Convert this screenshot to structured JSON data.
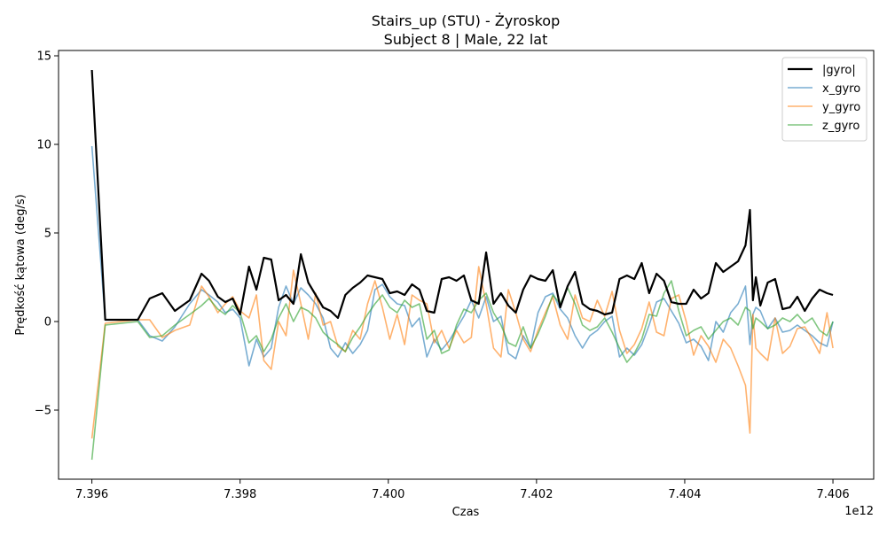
{
  "chart_data": {
    "type": "line",
    "title": "Stairs_up (STU) - Żyroskop",
    "subtitle": "Subject 8 | Male, 22 lat",
    "xlabel": "Czas",
    "ylabel": "Prędkość kątowa (deg/s)",
    "x_offset_label": "1e12",
    "xlim": [
      7.39555,
      7.40655
    ],
    "ylim": [
      -8.9,
      15.3
    ],
    "x_ticks": [
      7.396,
      7.398,
      7.4,
      7.402,
      7.404,
      7.406
    ],
    "x_tick_labels": [
      "7.396",
      "7.398",
      "7.400",
      "7.402",
      "7.404",
      "7.406"
    ],
    "y_ticks": [
      -5,
      0,
      5,
      10,
      15
    ],
    "y_tick_labels": [
      "−5",
      "0",
      "5",
      "10",
      "15"
    ],
    "grid": false,
    "legend_position": "top-right",
    "series": [
      {
        "name": "|gyro|",
        "color": "#000000",
        "x": [
          7.396,
          7.39618,
          7.39662,
          7.39678,
          7.39695,
          7.39712,
          7.39732,
          7.39748,
          7.39758,
          7.3977,
          7.3978,
          7.3979,
          7.398,
          7.39812,
          7.39822,
          7.39832,
          7.39842,
          7.39852,
          7.39862,
          7.39872,
          7.39882,
          7.39892,
          7.39902,
          7.39912,
          7.39922,
          7.39932,
          7.39942,
          7.39952,
          7.39962,
          7.39972,
          7.39982,
          7.39992,
          7.40002,
          7.40012,
          7.40022,
          7.40032,
          7.40042,
          7.40052,
          7.40062,
          7.40072,
          7.40082,
          7.40092,
          7.40102,
          7.40112,
          7.40122,
          7.40132,
          7.40142,
          7.40152,
          7.40162,
          7.40172,
          7.40182,
          7.40192,
          7.40202,
          7.40212,
          7.40222,
          7.40232,
          7.40242,
          7.40252,
          7.40262,
          7.40272,
          7.40282,
          7.40292,
          7.40302,
          7.40312,
          7.40322,
          7.40332,
          7.40342,
          7.40352,
          7.40362,
          7.40372,
          7.40382,
          7.40392,
          7.40402,
          7.40412,
          7.40422,
          7.40432,
          7.40442,
          7.40452,
          7.40462,
          7.40472,
          7.40482,
          7.40488,
          7.40492,
          7.40496,
          7.40502,
          7.40512,
          7.40522,
          7.40532,
          7.40542,
          7.40552,
          7.40562,
          7.40572,
          7.40582,
          7.40592,
          7.406
        ],
        "y": [
          14.2,
          0.1,
          0.1,
          1.3,
          1.6,
          0.6,
          1.2,
          2.7,
          2.3,
          1.4,
          1.1,
          1.3,
          0.4,
          3.1,
          1.8,
          3.6,
          3.5,
          1.2,
          1.5,
          1.0,
          3.8,
          2.2,
          1.5,
          0.8,
          0.6,
          0.2,
          1.5,
          1.9,
          2.2,
          2.6,
          2.5,
          2.4,
          1.6,
          1.7,
          1.5,
          2.1,
          1.8,
          0.6,
          0.5,
          2.4,
          2.5,
          2.3,
          2.6,
          1.2,
          1.0,
          3.9,
          1.0,
          1.6,
          0.9,
          0.5,
          1.8,
          2.6,
          2.4,
          2.3,
          2.9,
          0.8,
          2.0,
          2.8,
          1.0,
          0.7,
          0.6,
          0.4,
          0.5,
          2.4,
          2.6,
          2.4,
          3.3,
          1.6,
          2.7,
          2.3,
          1.1,
          1.0,
          1.0,
          1.8,
          1.3,
          1.6,
          3.3,
          2.8,
          3.1,
          3.4,
          4.3,
          6.3,
          1.2,
          2.5,
          0.9,
          2.2,
          2.4,
          0.7,
          0.8,
          1.4,
          0.6,
          1.3,
          1.8,
          1.6,
          1.5
        ],
        "line_width": 2.2,
        "opacity": 1.0
      },
      {
        "name": "x_gyro",
        "color": "#1f77b4",
        "x": [
          7.396,
          7.39618,
          7.39662,
          7.39678,
          7.39695,
          7.39712,
          7.39732,
          7.39748,
          7.39758,
          7.3977,
          7.3978,
          7.3979,
          7.398,
          7.39812,
          7.39822,
          7.39832,
          7.39842,
          7.39852,
          7.39862,
          7.39872,
          7.39882,
          7.39892,
          7.39902,
          7.39912,
          7.39922,
          7.39932,
          7.39942,
          7.39952,
          7.39962,
          7.39972,
          7.39982,
          7.39992,
          7.40002,
          7.40012,
          7.40022,
          7.40032,
          7.40042,
          7.40052,
          7.40062,
          7.40072,
          7.40082,
          7.40092,
          7.40102,
          7.40112,
          7.40122,
          7.40132,
          7.40142,
          7.40152,
          7.40162,
          7.40172,
          7.40182,
          7.40192,
          7.40202,
          7.40212,
          7.40222,
          7.40232,
          7.40242,
          7.40252,
          7.40262,
          7.40272,
          7.40282,
          7.40292,
          7.40302,
          7.40312,
          7.40322,
          7.40332,
          7.40342,
          7.40352,
          7.40362,
          7.40372,
          7.40382,
          7.40392,
          7.40402,
          7.40412,
          7.40422,
          7.40432,
          7.40442,
          7.40452,
          7.40462,
          7.40472,
          7.40482,
          7.40488,
          7.40492,
          7.40496,
          7.40502,
          7.40512,
          7.40522,
          7.40532,
          7.40542,
          7.40552,
          7.40562,
          7.40572,
          7.40582,
          7.40592,
          7.406
        ],
        "y": [
          9.9,
          0.1,
          0.1,
          -0.8,
          -1.1,
          -0.3,
          1.0,
          1.8,
          1.5,
          1.1,
          0.5,
          0.7,
          0.2,
          -2.5,
          -1.0,
          -2.0,
          -1.5,
          0.8,
          2.0,
          1.0,
          1.9,
          1.5,
          1.0,
          0.2,
          -1.5,
          -2.0,
          -1.2,
          -1.8,
          -1.3,
          -0.5,
          1.8,
          2.1,
          1.4,
          1.0,
          0.9,
          -0.3,
          0.2,
          -2.0,
          -1.0,
          -1.6,
          -1.1,
          -0.4,
          0.3,
          1.2,
          0.2,
          1.4,
          0.0,
          0.3,
          -1.8,
          -2.1,
          -0.8,
          -1.5,
          0.5,
          1.4,
          1.6,
          0.7,
          0.2,
          -0.8,
          -1.5,
          -0.8,
          -0.5,
          0.0,
          0.3,
          -2.0,
          -1.5,
          -1.9,
          -1.3,
          -0.2,
          1.1,
          1.3,
          0.6,
          -0.1,
          -1.2,
          -1.0,
          -1.4,
          -2.2,
          0.0,
          -0.6,
          0.5,
          1.0,
          2.0,
          -1.3,
          0.4,
          0.8,
          0.6,
          -0.4,
          0.2,
          -0.6,
          -0.5,
          -0.2,
          -0.5,
          -0.8,
          -1.2,
          -1.4,
          0.0
        ],
        "line_width": 1.6,
        "opacity": 0.6
      },
      {
        "name": "y_gyro",
        "color": "#ff7f0e",
        "x": [
          7.396,
          7.39618,
          7.39662,
          7.39678,
          7.39695,
          7.39712,
          7.39732,
          7.39748,
          7.39758,
          7.3977,
          7.3978,
          7.3979,
          7.398,
          7.39812,
          7.39822,
          7.39832,
          7.39842,
          7.39852,
          7.39862,
          7.39872,
          7.39882,
          7.39892,
          7.39902,
          7.39912,
          7.39922,
          7.39932,
          7.39942,
          7.39952,
          7.39962,
          7.39972,
          7.39982,
          7.39992,
          7.40002,
          7.40012,
          7.40022,
          7.40032,
          7.40042,
          7.40052,
          7.40062,
          7.40072,
          7.40082,
          7.40092,
          7.40102,
          7.40112,
          7.40122,
          7.40132,
          7.40142,
          7.40152,
          7.40162,
          7.40172,
          7.40182,
          7.40192,
          7.40202,
          7.40212,
          7.40222,
          7.40232,
          7.40242,
          7.40252,
          7.40262,
          7.40272,
          7.40282,
          7.40292,
          7.40302,
          7.40312,
          7.40322,
          7.40332,
          7.40342,
          7.40352,
          7.40362,
          7.40372,
          7.40382,
          7.40392,
          7.40402,
          7.40412,
          7.40422,
          7.40432,
          7.40442,
          7.40452,
          7.40462,
          7.40472,
          7.40482,
          7.40488,
          7.40492,
          7.40496,
          7.40502,
          7.40512,
          7.40522,
          7.40532,
          7.40542,
          7.40552,
          7.40562,
          7.40572,
          7.40582,
          7.40592,
          7.406
        ],
        "y": [
          -6.6,
          -0.1,
          0.1,
          0.1,
          -0.9,
          -0.5,
          -0.2,
          2.0,
          1.4,
          0.5,
          1.0,
          1.4,
          0.6,
          0.2,
          1.5,
          -2.2,
          -2.7,
          0.0,
          -0.8,
          2.9,
          1.0,
          -1.0,
          1.6,
          -0.2,
          0.0,
          -1.4,
          -1.7,
          -0.5,
          -1.0,
          1.0,
          2.3,
          0.8,
          -1.0,
          0.4,
          -1.3,
          1.5,
          1.2,
          1.0,
          -1.2,
          -0.5,
          -1.5,
          -0.5,
          -1.2,
          -0.9,
          3.1,
          1.0,
          -1.5,
          -2.0,
          1.8,
          0.5,
          -1.0,
          -1.7,
          -0.5,
          0.5,
          1.4,
          -0.2,
          -1.0,
          1.5,
          0.2,
          0.0,
          1.2,
          0.3,
          1.7,
          -0.5,
          -1.8,
          -1.3,
          -0.4,
          1.1,
          -0.6,
          -0.8,
          1.3,
          1.5,
          0.0,
          -1.9,
          -0.8,
          -1.4,
          -2.3,
          -1.0,
          -1.5,
          -2.5,
          -3.6,
          -6.3,
          0.4,
          -1.5,
          -1.8,
          -2.2,
          0.2,
          -1.8,
          -1.4,
          -0.4,
          -0.3,
          -1.0,
          -1.8,
          0.5,
          -1.5
        ],
        "line_width": 1.6,
        "opacity": 0.6
      },
      {
        "name": "z_gyro",
        "color": "#2ca02c",
        "x": [
          7.396,
          7.39618,
          7.39662,
          7.39678,
          7.39695,
          7.39712,
          7.39732,
          7.39748,
          7.39758,
          7.3977,
          7.3978,
          7.3979,
          7.398,
          7.39812,
          7.39822,
          7.39832,
          7.39842,
          7.39852,
          7.39862,
          7.39872,
          7.39882,
          7.39892,
          7.39902,
          7.39912,
          7.39922,
          7.39932,
          7.39942,
          7.39952,
          7.39962,
          7.39972,
          7.39982,
          7.39992,
          7.40002,
          7.40012,
          7.40022,
          7.40032,
          7.40042,
          7.40052,
          7.40062,
          7.40072,
          7.40082,
          7.40092,
          7.40102,
          7.40112,
          7.40122,
          7.40132,
          7.40142,
          7.40152,
          7.40162,
          7.40172,
          7.40182,
          7.40192,
          7.40202,
          7.40212,
          7.40222,
          7.40232,
          7.40242,
          7.40252,
          7.40262,
          7.40272,
          7.40282,
          7.40292,
          7.40302,
          7.40312,
          7.40322,
          7.40332,
          7.40342,
          7.40352,
          7.40362,
          7.40372,
          7.40382,
          7.40392,
          7.40402,
          7.40412,
          7.40422,
          7.40432,
          7.40442,
          7.40452,
          7.40462,
          7.40472,
          7.40482,
          7.40488,
          7.40492,
          7.40496,
          7.40502,
          7.40512,
          7.40522,
          7.40532,
          7.40542,
          7.40552,
          7.40562,
          7.40572,
          7.40582,
          7.40592,
          7.406
        ],
        "y": [
          -7.8,
          -0.2,
          0.0,
          -0.9,
          -0.8,
          -0.2,
          0.4,
          0.9,
          1.3,
          0.7,
          0.4,
          0.9,
          0.5,
          -1.2,
          -0.8,
          -1.7,
          -1.0,
          0.2,
          1.0,
          0.0,
          0.8,
          0.6,
          0.2,
          -0.6,
          -1.0,
          -1.3,
          -1.7,
          -0.9,
          -0.3,
          0.4,
          1.0,
          1.5,
          0.8,
          0.5,
          1.2,
          0.8,
          1.0,
          -1.0,
          -0.5,
          -1.8,
          -1.6,
          -0.2,
          0.7,
          0.5,
          1.2,
          1.6,
          0.5,
          -0.2,
          -1.2,
          -1.4,
          -0.3,
          -1.5,
          -0.7,
          0.3,
          1.5,
          1.0,
          1.9,
          1.0,
          -0.2,
          -0.5,
          -0.3,
          0.2,
          -0.6,
          -1.5,
          -2.3,
          -1.8,
          -1.0,
          0.4,
          0.3,
          1.6,
          2.3,
          0.6,
          -0.8,
          -0.5,
          -0.3,
          -1.0,
          -0.5,
          0.0,
          0.2,
          -0.2,
          0.8,
          0.6,
          -0.4,
          0.2,
          0.0,
          -0.4,
          -0.2,
          0.2,
          0.0,
          0.4,
          -0.1,
          0.2,
          -0.5,
          -0.8,
          0.0
        ],
        "line_width": 1.6,
        "opacity": 0.6
      }
    ]
  }
}
